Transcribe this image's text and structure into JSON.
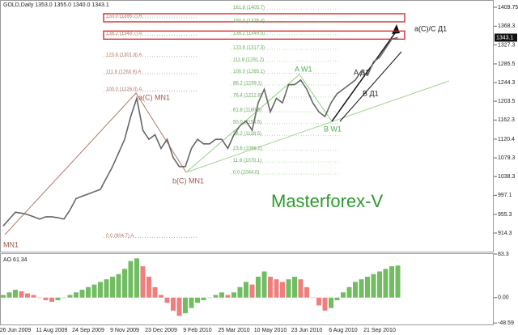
{
  "chart_data": [
    {
      "type": "line",
      "title": "GOLD,Daily  1353.0 1355.0 1340.0 1343.1",
      "categories": [
        null,
        null,
        "26 Jun 2009",
        null,
        null,
        null,
        null,
        null,
        "11 Aug 2009",
        null,
        null,
        null,
        null,
        null,
        "24 Sep 2009",
        null,
        null,
        null,
        null,
        null,
        "9 Nov 2009",
        null,
        null,
        null,
        null,
        null,
        "23 Dec 2009",
        null,
        null,
        null,
        null,
        null,
        "9 Feb 2010",
        null,
        null,
        null,
        null,
        null,
        "25 Mar 2010",
        null,
        null,
        null,
        null,
        null,
        "10 May 2010",
        null,
        null,
        null,
        null,
        null,
        "23 Jun 2010",
        null,
        null,
        null,
        null,
        null,
        "6 Aug 2010",
        null,
        null,
        null,
        null,
        null,
        "21 Sep 2010",
        null,
        null,
        null
      ],
      "series": [
        {
          "name": "GOLD",
          "color": "#666666",
          "values": [
            930,
            945,
            960,
            958,
            955,
            950,
            945,
            950,
            950,
            948,
            945,
            965,
            990,
            995,
            1000,
            1005,
            1010,
            1035,
            1060,
            1090,
            1120,
            1170,
            1210,
            1140,
            1120,
            1130,
            1100,
            1120,
            1080,
            1060,
            1060,
            1100,
            1120,
            1110,
            1110,
            1120,
            1120,
            1100,
            1130,
            1150,
            1160,
            1140,
            1200,
            1230,
            1180,
            1210,
            1200,
            1240,
            1240,
            1250,
            1230,
            1200,
            1180,
            1170,
            1200,
            1220,
            1230,
            1240,
            1250,
            1270,
            1260,
            1290,
            1300,
            1320,
            1340,
            1343.1
          ]
        }
      ],
      "ylim": [
        871.7,
        1425.7
      ],
      "yticks": [
        1409.75,
        1368.3,
        1327.3,
        1285.5,
        1244.3,
        1203.5,
        1162.3,
        1120.4,
        1079.3,
        1038.3,
        997.1,
        955.3,
        914.3
      ],
      "fib_levels_a": [
        {
          "value": 904.7,
          "label": "0.0 (904.7) A"
        },
        {
          "value": 1226.0,
          "label": "100.0 (1226.0) A"
        },
        {
          "value": 1263.9,
          "label": "111.8 (1263.9) A"
        },
        {
          "value": 1301.8,
          "label": "123.6 (1301.8) A"
        },
        {
          "value": 1348.7,
          "label": "138.2 (1348.7) A"
        },
        {
          "value": 1386.7,
          "label": "150.0 (1386.7) A"
        }
      ],
      "fib_levels_b": [
        {
          "value": 1405.7,
          "label": "161.8 (1405.7)"
        },
        {
          "value": 1376.4,
          "label": "150.0 (1376.4)"
        },
        {
          "value": 1349.5,
          "label": "138.2 (1349.5)"
        },
        {
          "value": 1317.3,
          "label": "123.6 (1317.3)"
        },
        {
          "value": 1291.2,
          "label": "111.8 (1291.2)"
        },
        {
          "value": 1265.1,
          "label": "100.0 (1265.1)"
        },
        {
          "value": 1239.1,
          "label": "88.2 (1239.1)"
        },
        {
          "value": 1212.8,
          "label": "76.4 (1212.8)"
        },
        {
          "value": 1180.5,
          "label": "61.8 (1180.5)"
        },
        {
          "value": 1154.5,
          "label": "50.0 (1154.5)"
        },
        {
          "value": 1128.5,
          "label": "38.2 (1128.5)"
        },
        {
          "value": 1096.2,
          "label": "23.6 (1096.2)"
        },
        {
          "value": 1070.1,
          "label": "11.8 (1070.1)"
        },
        {
          "value": 1044.0,
          "label": "0.0 (1044.0)"
        }
      ],
      "annotations": [
        "a(C) MN1",
        "b(C) MN1",
        "MN1",
        "A W1",
        "B W1",
        "A Д1",
        "B Д1",
        "a(C)/C Д1",
        "Masterforex-V"
      ]
    },
    {
      "type": "bar",
      "title": "AO 61.34",
      "colors": {
        "up": "#72bd62",
        "down": "#ef7f7f"
      },
      "values": [
        5,
        10,
        15,
        12,
        8,
        5,
        0,
        -5,
        -8,
        -5,
        0,
        5,
        10,
        15,
        20,
        25,
        30,
        35,
        40,
        45,
        55,
        70,
        75,
        60,
        40,
        20,
        5,
        -10,
        -25,
        -35,
        -30,
        -20,
        -10,
        -5,
        0,
        5,
        10,
        5,
        10,
        20,
        30,
        25,
        40,
        50,
        40,
        35,
        30,
        35,
        40,
        35,
        20,
        0,
        -15,
        -25,
        -20,
        -5,
        10,
        20,
        30,
        35,
        40,
        45,
        50,
        55,
        60,
        61.34
      ],
      "ylim": [
        -53,
        84.8
      ],
      "yticks": [
        83.3,
        {
          "value": 0,
          "label": "0.00"
        },
        -48.59
      ]
    }
  ]
}
